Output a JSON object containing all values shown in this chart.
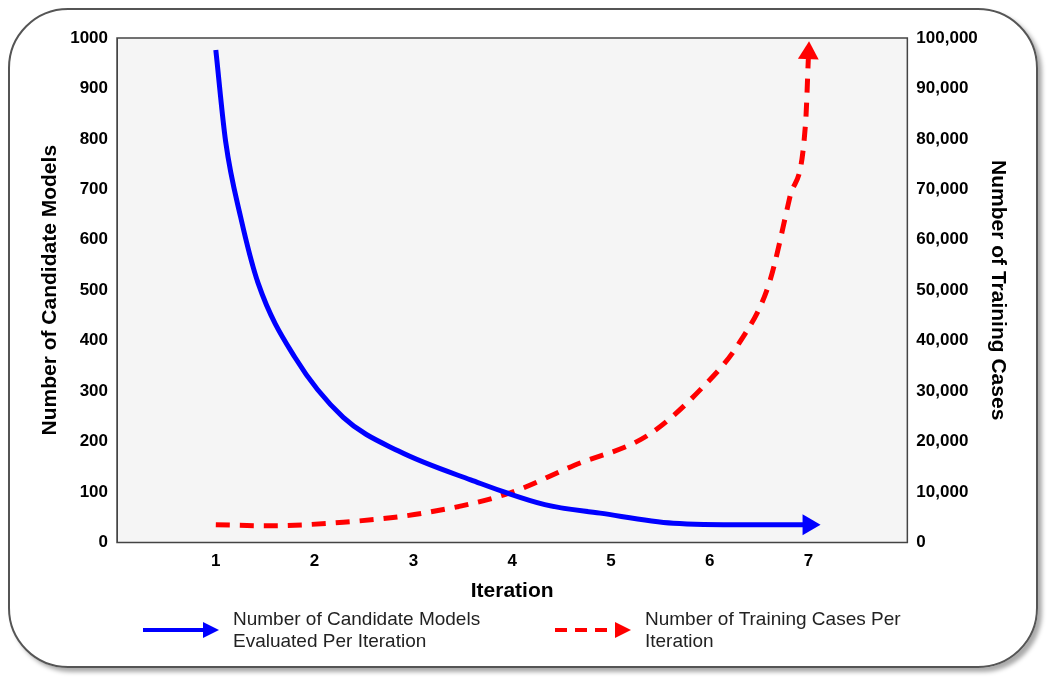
{
  "chart_data": {
    "type": "line",
    "xlabel": "Iteration",
    "ylabel": "Number of Candidate Models",
    "y2label": "Number of Training Cases",
    "xlim": [
      0,
      8
    ],
    "xticks": [
      1,
      2,
      3,
      4,
      5,
      6,
      7
    ],
    "ylim": [
      0,
      1000
    ],
    "yticks": [
      0,
      100,
      200,
      300,
      400,
      500,
      600,
      700,
      800,
      900,
      1000
    ],
    "y2lim": [
      0,
      100000
    ],
    "y2ticks": [
      0,
      {
        "value": 10000,
        "label": "10,000"
      },
      {
        "value": 20000,
        "label": "20,000"
      },
      {
        "value": 30000,
        "label": "30,000"
      },
      {
        "value": 40000,
        "label": "40,000"
      },
      {
        "value": 50000,
        "label": "50,000"
      },
      {
        "value": 60000,
        "label": "60,000"
      },
      {
        "value": 70000,
        "label": "70,000"
      },
      {
        "value": 80000,
        "label": "80,000"
      },
      {
        "value": 90000,
        "label": "90,000"
      },
      {
        "value": 100000,
        "label": "100,000"
      }
    ],
    "grid": false,
    "legend": "bottom",
    "series": [
      {
        "name": "Number of Candidate Models Evaluated Per Iteration",
        "color": "#0000ff",
        "line_style": "solid",
        "x": [
          1,
          1.1,
          1.25,
          1.43,
          1.8,
          2.29,
          2.85,
          3.58,
          4.33,
          4.89,
          5.63,
          6.37,
          7
        ],
        "values": [
          976,
          794,
          646,
          513,
          367,
          248,
          181,
          124,
          75,
          58,
          38,
          35,
          35
        ]
      },
      {
        "name": "Number of Training Cases Per Iteration",
        "color": "#ff0000",
        "line_style": "dashed",
        "axis": "y2",
        "x": [
          1,
          1.5,
          2.29,
          3.1,
          3.96,
          4.63,
          5.37,
          5.93,
          6.3,
          6.6,
          6.81,
          6.97,
          7
        ],
        "values": [
          3500,
          3300,
          4000,
          5800,
          9700,
          15300,
          21200,
          30800,
          39600,
          51300,
          68400,
          83200,
          97000
        ]
      }
    ]
  }
}
